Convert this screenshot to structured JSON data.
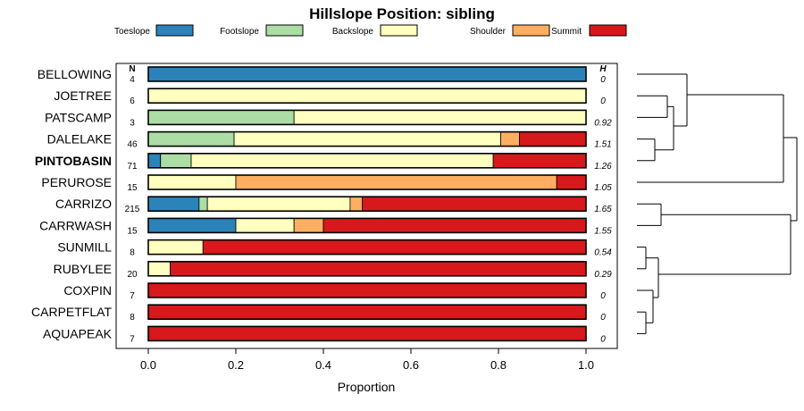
{
  "chart_data": {
    "type": "bar",
    "orientation": "horizontal",
    "stacked": true,
    "title": "Hillslope Position: sibling",
    "xlabel": "Proportion",
    "xlim": [
      0,
      1
    ],
    "x_ticks": [
      "0.0",
      "0.2",
      "0.4",
      "0.6",
      "0.8",
      "1.0"
    ],
    "n_header": "N",
    "h_header": "H",
    "highlight": "PINTOBASIN",
    "legend": [
      {
        "name": "Toeslope",
        "color": "#2B83BA"
      },
      {
        "name": "Footslope",
        "color": "#ABDDA4"
      },
      {
        "name": "Backslope",
        "color": "#FFFFBF"
      },
      {
        "name": "Shoulder",
        "color": "#FDAE61"
      },
      {
        "name": "Summit",
        "color": "#D7191C"
      }
    ],
    "rows": [
      {
        "label": "BELLOWING",
        "n": "4",
        "h": "0",
        "values": [
          1.0,
          0,
          0,
          0,
          0
        ]
      },
      {
        "label": "JOETREE",
        "n": "6",
        "h": "0",
        "values": [
          0,
          0,
          1.0,
          0,
          0
        ]
      },
      {
        "label": "PATSCAMP",
        "n": "3",
        "h": "0.92",
        "values": [
          0,
          0.333,
          0.667,
          0,
          0
        ]
      },
      {
        "label": "DALELAKE",
        "n": "46",
        "h": "1.51",
        "values": [
          0,
          0.196,
          0.609,
          0.043,
          0.152
        ]
      },
      {
        "label": "PINTOBASIN",
        "n": "71",
        "h": "1.26",
        "values": [
          0.028,
          0.07,
          0.69,
          0,
          0.212
        ]
      },
      {
        "label": "PERUROSE",
        "n": "15",
        "h": "1.05",
        "values": [
          0,
          0,
          0.2,
          0.733,
          0.067
        ]
      },
      {
        "label": "CARRIZO",
        "n": "215",
        "h": "1.65",
        "values": [
          0.116,
          0.019,
          0.326,
          0.028,
          0.511
        ]
      },
      {
        "label": "CARRWASH",
        "n": "15",
        "h": "1.55",
        "values": [
          0.2,
          0,
          0.133,
          0.067,
          0.6
        ]
      },
      {
        "label": "SUNMILL",
        "n": "8",
        "h": "0.54",
        "values": [
          0,
          0,
          0.125,
          0,
          0.875
        ]
      },
      {
        "label": "RUBYLEE",
        "n": "20",
        "h": "0.29",
        "values": [
          0,
          0,
          0.05,
          0,
          0.95
        ]
      },
      {
        "label": "COXPIN",
        "n": "7",
        "h": "0",
        "values": [
          0,
          0,
          0,
          0,
          1.0
        ]
      },
      {
        "label": "CARPETFLAT",
        "n": "8",
        "h": "0",
        "values": [
          0,
          0,
          0,
          0,
          1.0
        ]
      },
      {
        "label": "AQUAPEAK",
        "n": "7",
        "h": "0",
        "values": [
          0,
          0,
          0,
          0,
          1.0
        ]
      }
    ]
  }
}
